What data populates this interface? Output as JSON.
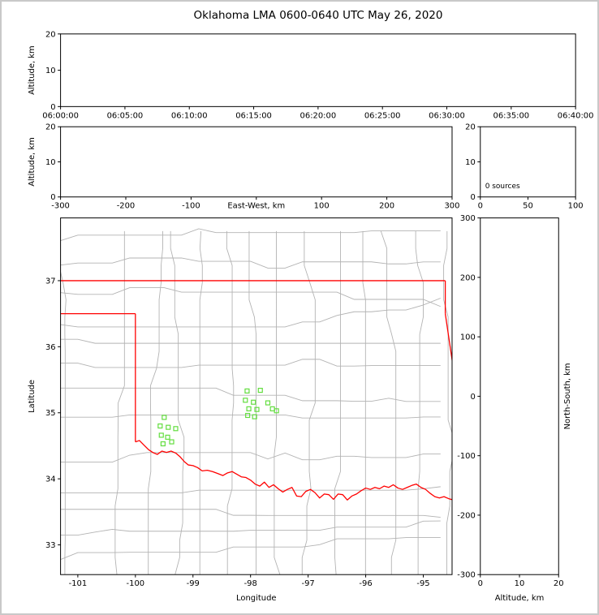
{
  "title": "Oklahoma LMA 0600-0640 UTC May 26, 2020",
  "colors": {
    "background": "#ffffff",
    "frame_border": "#c9c9c9",
    "axis": "#000000",
    "county": "#b3b3b3",
    "boundary": "#ff0000",
    "station": "#62dd3e"
  },
  "chart_data": [
    {
      "id": "time_height",
      "type": "scatter",
      "description": "altitude vs time panel, no sources plotted",
      "xlim": [
        0,
        40
      ],
      "xticks": [
        0,
        5,
        10,
        15,
        20,
        25,
        30,
        35,
        40
      ],
      "xtick_labels": [
        "06:00:00",
        "06:05:00",
        "06:10:00",
        "06:15:00",
        "06:20:00",
        "06:25:00",
        "06:30:00",
        "06:35:00",
        "06:40:00"
      ],
      "ylabel": "Altitude, km",
      "ylim": [
        0,
        20
      ],
      "yticks": [
        0,
        10,
        20
      ],
      "points": []
    },
    {
      "id": "ew_height",
      "type": "scatter",
      "description": "altitude vs east-west distance panel, no sources plotted",
      "xlabel": "East-West, km",
      "xlabel_inline": true,
      "xlim": [
        -300,
        300
      ],
      "xticks": [
        -300,
        -200,
        -100,
        0,
        100,
        200,
        300
      ],
      "xtick_labels": [
        "-300",
        "-200",
        "-100",
        "",
        "100",
        "200",
        "300"
      ],
      "ylabel": "Altitude, km",
      "ylim": [
        0,
        20
      ],
      "yticks": [
        0,
        10,
        20
      ],
      "points": []
    },
    {
      "id": "alt_histogram",
      "type": "histogram",
      "description": "source count vs altitude histogram panel",
      "annotation": "0 sources",
      "xlim": [
        0,
        100
      ],
      "xticks": [
        0,
        50,
        100
      ],
      "ylim": [
        0,
        20
      ],
      "yticks": [
        0,
        10,
        20
      ],
      "values": []
    },
    {
      "id": "map",
      "type": "map_scatter",
      "description": "plan view map of Oklahoma with LMA station locations",
      "xlabel": "Longitude",
      "ylabel": "Latitude",
      "xlim": [
        -101.3,
        -94.5
      ],
      "ylim": [
        32.55,
        37.95
      ],
      "xticks": [
        -101,
        -100,
        -99,
        -98,
        -97,
        -96,
        -95
      ],
      "yticks": [
        33,
        34,
        35,
        36,
        37
      ],
      "stations": [
        [
          -98.06,
          35.33
        ],
        [
          -97.83,
          35.34
        ],
        [
          -98.09,
          35.19
        ],
        [
          -97.95,
          35.16
        ],
        [
          -98.03,
          35.06
        ],
        [
          -97.89,
          35.05
        ],
        [
          -98.05,
          34.96
        ],
        [
          -97.93,
          34.94
        ],
        [
          -97.7,
          35.15
        ],
        [
          -97.62,
          35.06
        ],
        [
          -97.55,
          35.03
        ],
        [
          -99.5,
          34.93
        ],
        [
          -99.57,
          34.8
        ],
        [
          -99.43,
          34.78
        ],
        [
          -99.3,
          34.76
        ],
        [
          -99.55,
          34.66
        ],
        [
          -99.44,
          34.63
        ],
        [
          -99.52,
          34.53
        ],
        [
          -99.37,
          34.56
        ]
      ],
      "boundary_segments": [
        [
          [
            -101.3,
            37.0
          ],
          [
            -94.618,
            37.0
          ]
        ],
        [
          [
            -94.618,
            37.0
          ],
          [
            -94.618,
            36.5
          ]
        ],
        [
          [
            -94.618,
            36.5
          ],
          [
            -94.43,
            35.39
          ]
        ],
        [
          [
            -101.3,
            36.5
          ],
          [
            -100.0,
            36.5
          ]
        ],
        [
          [
            -100.0,
            36.5
          ],
          [
            -100.0,
            34.56
          ]
        ],
        [
          [
            -100.0,
            34.56
          ],
          [
            -99.93,
            34.58
          ],
          [
            -99.85,
            34.51
          ],
          [
            -99.77,
            34.44
          ],
          [
            -99.7,
            34.4
          ],
          [
            -99.62,
            34.37
          ],
          [
            -99.54,
            34.42
          ],
          [
            -99.46,
            34.4
          ],
          [
            -99.38,
            34.42
          ],
          [
            -99.3,
            34.39
          ],
          [
            -99.22,
            34.33
          ],
          [
            -99.15,
            34.26
          ],
          [
            -99.08,
            34.21
          ],
          [
            -99.0,
            34.2
          ],
          [
            -98.92,
            34.17
          ],
          [
            -98.84,
            34.12
          ],
          [
            -98.75,
            34.13
          ],
          [
            -98.66,
            34.11
          ],
          [
            -98.57,
            34.08
          ],
          [
            -98.48,
            34.05
          ],
          [
            -98.4,
            34.09
          ],
          [
            -98.32,
            34.11
          ],
          [
            -98.24,
            34.07
          ],
          [
            -98.16,
            34.03
          ],
          [
            -98.08,
            34.02
          ],
          [
            -98.0,
            33.98
          ],
          [
            -97.92,
            33.92
          ],
          [
            -97.84,
            33.89
          ],
          [
            -97.76,
            33.95
          ],
          [
            -97.68,
            33.87
          ],
          [
            -97.6,
            33.91
          ],
          [
            -97.52,
            33.85
          ],
          [
            -97.44,
            33.8
          ],
          [
            -97.36,
            33.84
          ],
          [
            -97.28,
            33.87
          ],
          [
            -97.2,
            33.74
          ],
          [
            -97.12,
            33.73
          ],
          [
            -97.04,
            33.81
          ],
          [
            -96.96,
            33.84
          ],
          [
            -96.88,
            33.79
          ],
          [
            -96.8,
            33.71
          ],
          [
            -96.72,
            33.77
          ],
          [
            -96.64,
            33.76
          ],
          [
            -96.56,
            33.69
          ],
          [
            -96.48,
            33.77
          ],
          [
            -96.4,
            33.76
          ],
          [
            -96.32,
            33.68
          ],
          [
            -96.24,
            33.74
          ],
          [
            -96.16,
            33.77
          ],
          [
            -96.08,
            33.82
          ],
          [
            -96.0,
            33.86
          ],
          [
            -95.92,
            33.84
          ],
          [
            -95.84,
            33.87
          ],
          [
            -95.76,
            33.85
          ],
          [
            -95.68,
            33.89
          ],
          [
            -95.6,
            33.87
          ],
          [
            -95.52,
            33.91
          ],
          [
            -95.44,
            33.86
          ],
          [
            -95.36,
            33.84
          ],
          [
            -95.28,
            33.87
          ],
          [
            -95.2,
            33.9
          ],
          [
            -95.12,
            33.92
          ],
          [
            -95.04,
            33.87
          ],
          [
            -94.96,
            33.84
          ],
          [
            -94.88,
            33.78
          ],
          [
            -94.8,
            33.73
          ],
          [
            -94.72,
            33.71
          ],
          [
            -94.64,
            33.73
          ],
          [
            -94.56,
            33.7
          ],
          [
            -94.48,
            33.68
          ]
        ]
      ],
      "county_grid": {
        "seed": 42,
        "lon_start": -101.22,
        "lon_step": 0.47,
        "lat_start": 32.78,
        "lat_step": 0.37,
        "lat_sample": 0.26,
        "lon_sample": 0.3,
        "jitter": 0.1,
        "stair": 0.22,
        "skip": 0.12
      }
    },
    {
      "id": "ns_height",
      "type": "scatter",
      "description": "north-south distance vs altitude panel, no sources plotted",
      "xlabel": "Altitude, km",
      "xlim": [
        0,
        20
      ],
      "xticks": [
        0,
        10,
        20
      ],
      "ylabel": "North-South, km",
      "ylabel_side": "right",
      "ylim": [
        -300,
        300
      ],
      "yticks": [
        -300,
        -200,
        -100,
        0,
        100,
        200,
        300
      ],
      "points": []
    }
  ]
}
